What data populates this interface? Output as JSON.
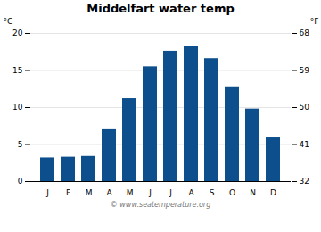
{
  "chart_data": {
    "type": "bar",
    "title": "Middelfart water temp",
    "categories": [
      "J",
      "F",
      "M",
      "A",
      "M",
      "J",
      "J",
      "A",
      "S",
      "O",
      "N",
      "D"
    ],
    "values": [
      3.2,
      3.3,
      3.4,
      7.0,
      11.2,
      15.5,
      17.6,
      18.2,
      16.6,
      12.8,
      9.8,
      5.9
    ],
    "color": "#0d4f8c",
    "ylabel": "°C",
    "ylim": [
      0,
      20
    ],
    "yticks": [
      0,
      5,
      10,
      15,
      20
    ],
    "y2label": "°F",
    "y2lim": [
      32,
      68
    ],
    "y2ticks": [
      32,
      41,
      50,
      59,
      68
    ],
    "grid": true,
    "annotations": [
      "© www.seatemperature.org"
    ]
  }
}
